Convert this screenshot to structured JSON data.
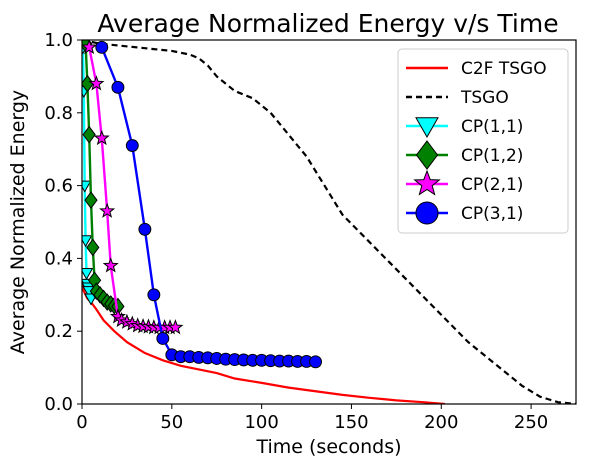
{
  "chart_data": {
    "type": "line",
    "title": "Average Normalized Energy v/s Time",
    "xlabel": "Time (seconds)",
    "ylabel": "Average Normalized Energy",
    "xlim": [
      0,
      275
    ],
    "ylim": [
      0,
      1.0
    ],
    "xticks": [
      0,
      50,
      100,
      150,
      200,
      250
    ],
    "yticks": [
      0.0,
      0.2,
      0.4,
      0.6,
      0.8,
      1.0
    ],
    "xtick_labels": [
      "0",
      "50",
      "100",
      "150",
      "200",
      "250"
    ],
    "ytick_labels": [
      "0.0",
      "0.2",
      "0.4",
      "0.6",
      "0.8",
      "1.0"
    ],
    "grid": false,
    "legend_position": "top-right",
    "series": [
      {
        "name": "C2F TSGO",
        "color": "#ff0000",
        "line_style": "solid",
        "marker": "none",
        "x": [
          0,
          1,
          2,
          3,
          5,
          8,
          12,
          18,
          25,
          35,
          45,
          55,
          65,
          75,
          85,
          100,
          115,
          130,
          145,
          160,
          175,
          190,
          202
        ],
        "y": [
          0.33,
          0.31,
          0.3,
          0.29,
          0.28,
          0.26,
          0.23,
          0.2,
          0.17,
          0.14,
          0.12,
          0.105,
          0.095,
          0.085,
          0.07,
          0.058,
          0.045,
          0.035,
          0.025,
          0.017,
          0.01,
          0.005,
          0.0
        ]
      },
      {
        "name": "TSGO",
        "color": "#000000",
        "line_style": "dashed",
        "marker": "none",
        "x": [
          0,
          10,
          20,
          30,
          40,
          50,
          55,
          60,
          65,
          70,
          75,
          85,
          95,
          105,
          115,
          125,
          135,
          145,
          155,
          165,
          175,
          185,
          195,
          205,
          215,
          225,
          235,
          245,
          255,
          265,
          275
        ],
        "y": [
          1.0,
          0.99,
          0.985,
          0.98,
          0.975,
          0.97,
          0.965,
          0.96,
          0.95,
          0.93,
          0.9,
          0.86,
          0.84,
          0.8,
          0.74,
          0.68,
          0.6,
          0.52,
          0.47,
          0.42,
          0.37,
          0.32,
          0.27,
          0.22,
          0.17,
          0.13,
          0.09,
          0.05,
          0.02,
          0.005,
          0.0
        ]
      },
      {
        "name": "CP(1,1)",
        "color": "#00ffff",
        "line_style": "solid",
        "marker": "triangle-down",
        "x": [
          0.5,
          1,
          1.5,
          2,
          2.5,
          3,
          3.5,
          4,
          5
        ],
        "y": [
          0.98,
          0.86,
          0.6,
          0.45,
          0.36,
          0.33,
          0.32,
          0.31,
          0.29
        ]
      },
      {
        "name": "CP(1,2)",
        "color": "#008000",
        "line_style": "solid",
        "marker": "diamond",
        "x": [
          2,
          3,
          4,
          5,
          6,
          7,
          8,
          10,
          12,
          14,
          16,
          18,
          20
        ],
        "y": [
          0.99,
          0.88,
          0.74,
          0.56,
          0.43,
          0.34,
          0.31,
          0.3,
          0.29,
          0.28,
          0.275,
          0.27,
          0.268
        ]
      },
      {
        "name": "CP(2,1)",
        "color": "#ff00ff",
        "line_style": "solid",
        "marker": "star",
        "x": [
          4,
          8,
          11,
          14,
          16,
          20,
          22,
          25,
          28,
          31,
          34,
          37,
          40,
          43,
          46,
          49,
          52
        ],
        "y": [
          0.98,
          0.88,
          0.73,
          0.53,
          0.38,
          0.24,
          0.23,
          0.225,
          0.22,
          0.215,
          0.213,
          0.212,
          0.21,
          0.21,
          0.21,
          0.21,
          0.21
        ]
      },
      {
        "name": "CP(3,1)",
        "color": "#0000ff",
        "line_style": "solid",
        "marker": "circle",
        "x": [
          11,
          20,
          28,
          35,
          40,
          45,
          50,
          55,
          60,
          65,
          70,
          75,
          80,
          85,
          90,
          95,
          100,
          105,
          110,
          115,
          120,
          125,
          130
        ],
        "y": [
          0.98,
          0.87,
          0.71,
          0.48,
          0.3,
          0.18,
          0.135,
          0.13,
          0.13,
          0.128,
          0.127,
          0.125,
          0.123,
          0.122,
          0.121,
          0.12,
          0.12,
          0.119,
          0.118,
          0.118,
          0.117,
          0.117,
          0.116
        ]
      }
    ]
  }
}
